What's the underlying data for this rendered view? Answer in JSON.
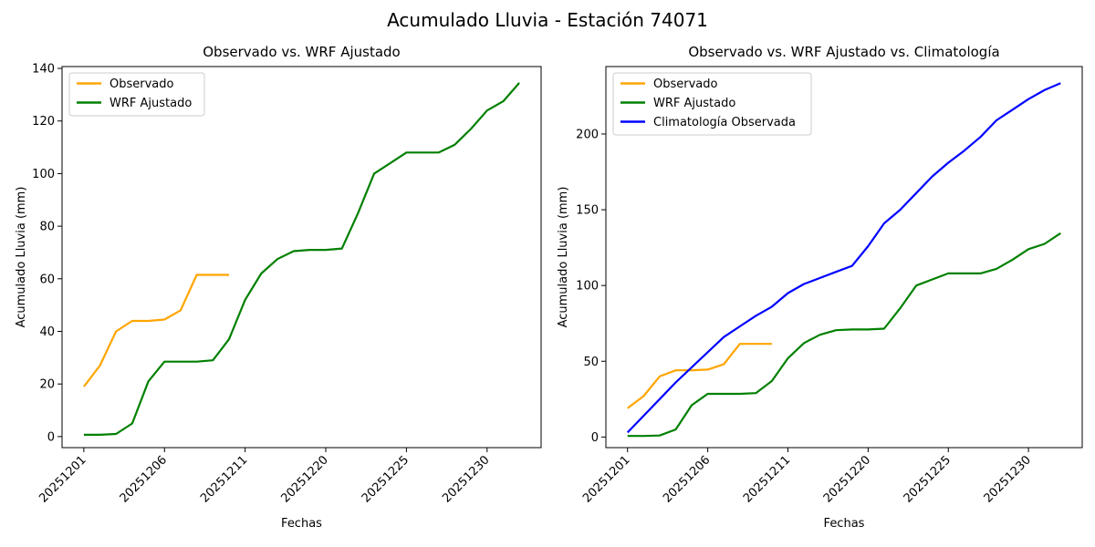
{
  "figure": {
    "title": "Acumulado Lluvia - Estación 74071"
  },
  "chart_data": [
    {
      "type": "line",
      "title": "Observado vs. WRF Ajustado",
      "xlabel": "Fechas",
      "ylabel": "Acumulado Lluvia (mm)",
      "x_tick_labels": [
        "20251201",
        "20251206",
        "20251211",
        "20251220",
        "20251225",
        "20251230"
      ],
      "x_tick_indices": [
        0,
        5,
        10,
        15,
        20,
        25
      ],
      "y_ticks": [
        0,
        20,
        40,
        60,
        80,
        100,
        120,
        140
      ],
      "xlim": [
        -1.35,
        28.35
      ],
      "ylim": [
        -4.2,
        140.7
      ],
      "grid": false,
      "legend_position": "upper-left",
      "legend": [
        "Observado",
        "WRF Ajustado"
      ],
      "series": [
        {
          "name": "Observado",
          "color": "#FFA500",
          "x_start": 0,
          "values": [
            19,
            27,
            40,
            44,
            44,
            44.5,
            48,
            61.5,
            61.5,
            61.5
          ]
        },
        {
          "name": "WRF Ajustado",
          "color": "#008000",
          "x_start": 0,
          "values": [
            0.7,
            0.7,
            1,
            5,
            21,
            28.5,
            28.5,
            28.5,
            29,
            37,
            52,
            62,
            67.5,
            70.5,
            71,
            71,
            71.5,
            85,
            100,
            104,
            108,
            108,
            108,
            111,
            117,
            124,
            127.5,
            134.5
          ]
        }
      ]
    },
    {
      "type": "line",
      "title": "Observado vs. WRF Ajustado vs. Climatología",
      "xlabel": "Fechas",
      "ylabel": "Acumulado Lluvia (mm)",
      "x_tick_labels": [
        "20251201",
        "20251206",
        "20251211",
        "20251220",
        "20251225",
        "20251230"
      ],
      "x_tick_indices": [
        0,
        5,
        10,
        15,
        20,
        25
      ],
      "y_ticks": [
        0,
        50,
        100,
        150,
        200
      ],
      "xlim": [
        -1.35,
        28.35
      ],
      "ylim": [
        -7,
        244.5
      ],
      "grid": false,
      "legend_position": "upper-left",
      "legend": [
        "Observado",
        "WRF Ajustado",
        "Climatología Observada"
      ],
      "series": [
        {
          "name": "Observado",
          "color": "#FFA500",
          "x_start": 0,
          "values": [
            19,
            27,
            40,
            44,
            44,
            44.5,
            48,
            61.5,
            61.5,
            61.5
          ]
        },
        {
          "name": "WRF Ajustado",
          "color": "#008000",
          "x_start": 0,
          "values": [
            0.7,
            0.7,
            1,
            5,
            21,
            28.5,
            28.5,
            28.5,
            29,
            37,
            52,
            62,
            67.5,
            70.5,
            71,
            71,
            71.5,
            85,
            100,
            104,
            108,
            108,
            108,
            111,
            117,
            124,
            127.5,
            134.5
          ]
        },
        {
          "name": "Climatología Observada",
          "color": "#0000FF",
          "x_start": 0,
          "values": [
            3,
            14,
            25,
            36,
            46,
            56,
            66,
            73,
            80,
            86,
            95,
            101,
            105,
            109,
            113,
            126,
            141,
            150,
            161,
            172,
            181,
            189,
            198,
            209,
            216,
            223,
            229,
            233.5
          ]
        }
      ]
    }
  ]
}
